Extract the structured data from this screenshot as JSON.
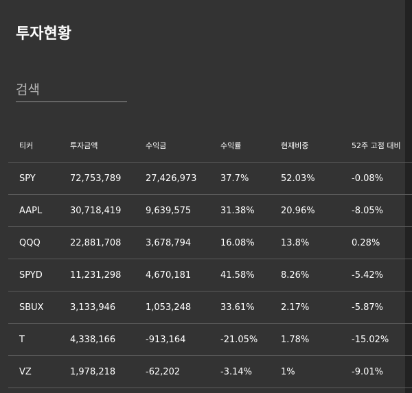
{
  "header": {
    "title": "투자현황"
  },
  "search": {
    "placeholder": "검색",
    "value": ""
  },
  "table": {
    "columns": [
      "티커",
      "투자금액",
      "수익금",
      "수익률",
      "현재비중",
      "52주 고점 대비"
    ],
    "rows": [
      {
        "ticker": "SPY",
        "amount": "72,753,789",
        "profit": "27,426,973",
        "rate": "37.7%",
        "weight": "52.03%",
        "from_high": "-0.08%",
        "profit_sign": "pos"
      },
      {
        "ticker": "AAPL",
        "amount": "30,718,419",
        "profit": "9,639,575",
        "rate": "31.38%",
        "weight": "20.96%",
        "from_high": "-8.05%",
        "profit_sign": "pos"
      },
      {
        "ticker": "QQQ",
        "amount": "22,881,708",
        "profit": "3,678,794",
        "rate": "16.08%",
        "weight": "13.8%",
        "from_high": "0.28%",
        "profit_sign": "pos"
      },
      {
        "ticker": "SPYD",
        "amount": "11,231,298",
        "profit": "4,670,181",
        "rate": "41.58%",
        "weight": "8.26%",
        "from_high": "-5.42%",
        "profit_sign": "pos"
      },
      {
        "ticker": "SBUX",
        "amount": "3,133,946",
        "profit": "1,053,248",
        "rate": "33.61%",
        "weight": "2.17%",
        "from_high": "-5.87%",
        "profit_sign": "pos"
      },
      {
        "ticker": "T",
        "amount": "4,338,166",
        "profit": "-913,164",
        "rate": "-21.05%",
        "weight": "1.78%",
        "from_high": "-15.02%",
        "profit_sign": "neg"
      },
      {
        "ticker": "VZ",
        "amount": "1,978,218",
        "profit": "-62,202",
        "rate": "-3.14%",
        "weight": "1%",
        "from_high": "-9.01%",
        "profit_sign": "neg"
      }
    ]
  },
  "colors": {
    "background": "#333333",
    "positive": "#27c267",
    "negative": "#e0454f",
    "text": "#ffffff"
  }
}
